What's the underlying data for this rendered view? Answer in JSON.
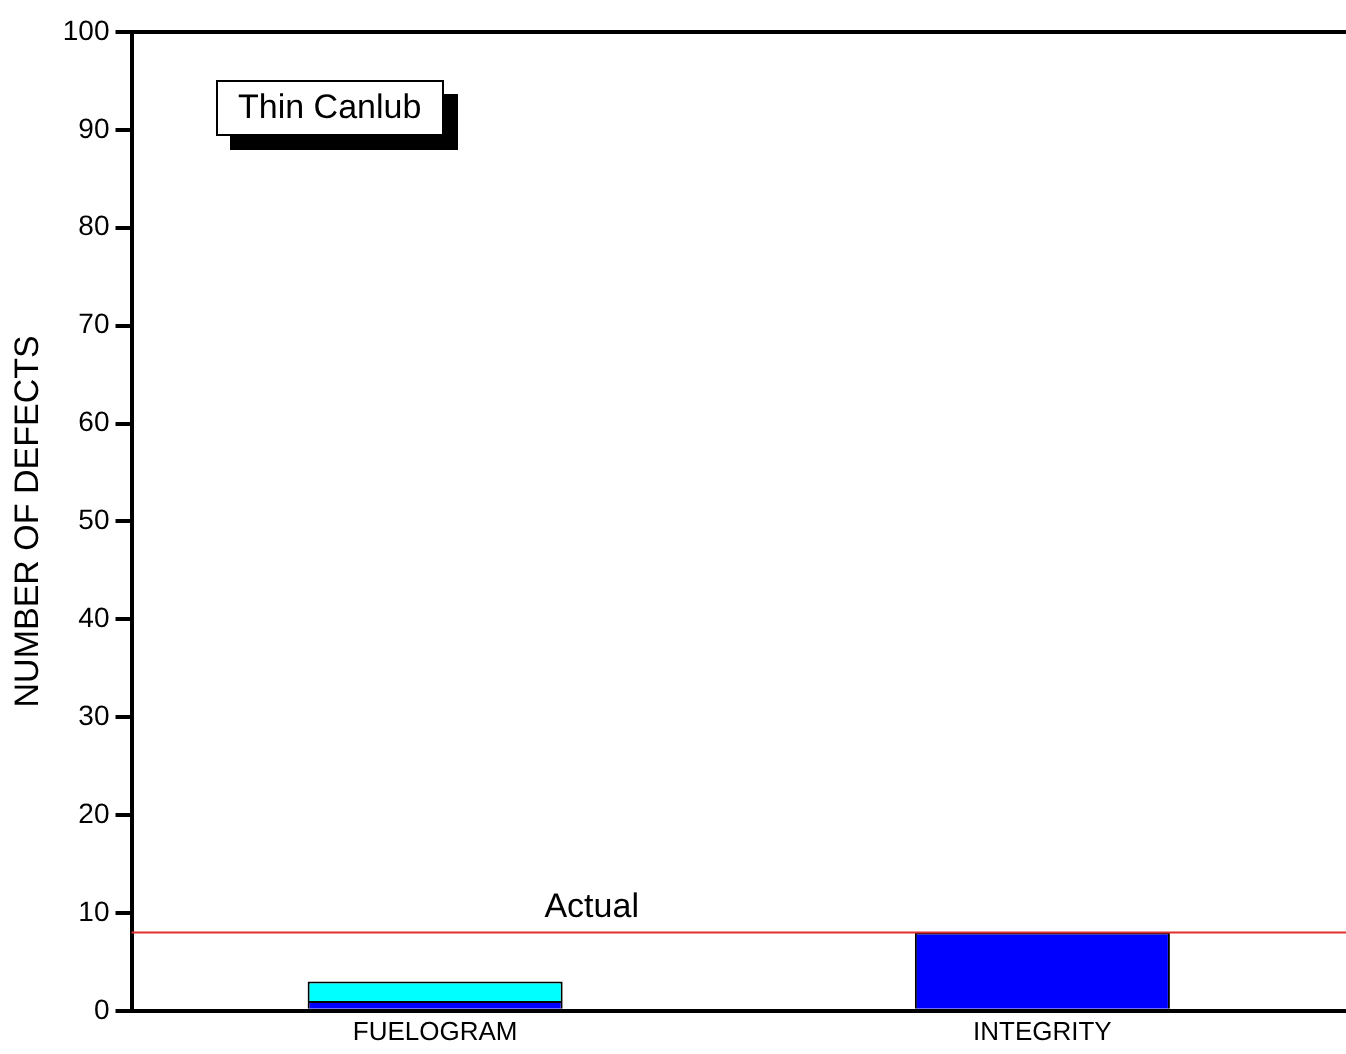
{
  "chart_data": {
    "type": "bar",
    "ylabel": "NUMBER OF DEFECTS",
    "categories": [
      "FUELOGRAM",
      "INTEGRITY"
    ],
    "stacked": true,
    "series": [
      {
        "color": "#0000ff",
        "values": [
          1,
          8
        ]
      },
      {
        "color": "#00ffff",
        "values": [
          2,
          0
        ]
      }
    ],
    "ylim": [
      0,
      100
    ],
    "yticks": [
      0,
      10,
      20,
      30,
      40,
      50,
      60,
      70,
      80,
      90,
      100
    ],
    "ref_lines": [
      {
        "axis": "y",
        "value": 8,
        "label": "Actual",
        "color": "#e03030"
      }
    ],
    "annotations": [
      "Thin Canlub"
    ],
    "grid": false,
    "legend": false
  }
}
